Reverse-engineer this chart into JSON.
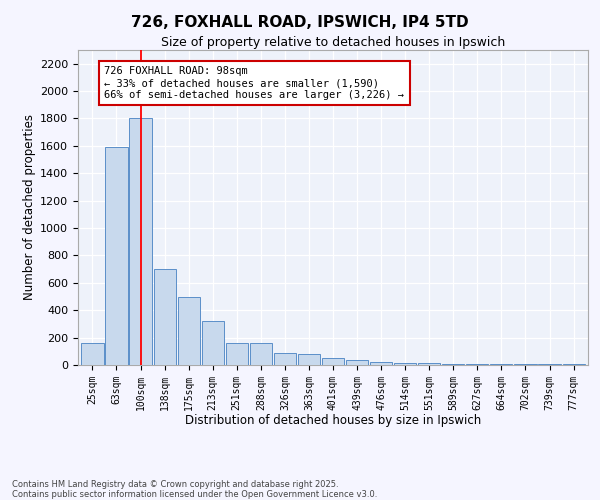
{
  "title": "726, FOXHALL ROAD, IPSWICH, IP4 5TD",
  "subtitle": "Size of property relative to detached houses in Ipswich",
  "xlabel": "Distribution of detached houses by size in Ipswich",
  "ylabel": "Number of detached properties",
  "bar_labels": [
    "25sqm",
    "63sqm",
    "100sqm",
    "138sqm",
    "175sqm",
    "213sqm",
    "251sqm",
    "288sqm",
    "326sqm",
    "363sqm",
    "401sqm",
    "439sqm",
    "476sqm",
    "514sqm",
    "551sqm",
    "589sqm",
    "627sqm",
    "664sqm",
    "702sqm",
    "739sqm",
    "777sqm"
  ],
  "bar_values": [
    160,
    1590,
    1800,
    700,
    500,
    320,
    160,
    160,
    90,
    80,
    50,
    40,
    20,
    15,
    12,
    8,
    5,
    5,
    5,
    5,
    5
  ],
  "bar_color": "#c8d9ed",
  "bar_edge_color": "#5b8fc9",
  "vline_x_index": 2,
  "vline_color": "red",
  "ylim": [
    0,
    2300
  ],
  "yticks": [
    0,
    200,
    400,
    600,
    800,
    1000,
    1200,
    1400,
    1600,
    1800,
    2000,
    2200
  ],
  "annotation_title": "726 FOXHALL ROAD: 98sqm",
  "annotation_line1": "← 33% of detached houses are smaller (1,590)",
  "annotation_line2": "66% of semi-detached houses are larger (3,226) →",
  "annotation_box_color": "#ffffff",
  "annotation_box_edge": "#cc0000",
  "background_color": "#eef2fa",
  "grid_color": "#ffffff",
  "footer_line1": "Contains HM Land Registry data © Crown copyright and database right 2025.",
  "footer_line2": "Contains public sector information licensed under the Open Government Licence v3.0."
}
